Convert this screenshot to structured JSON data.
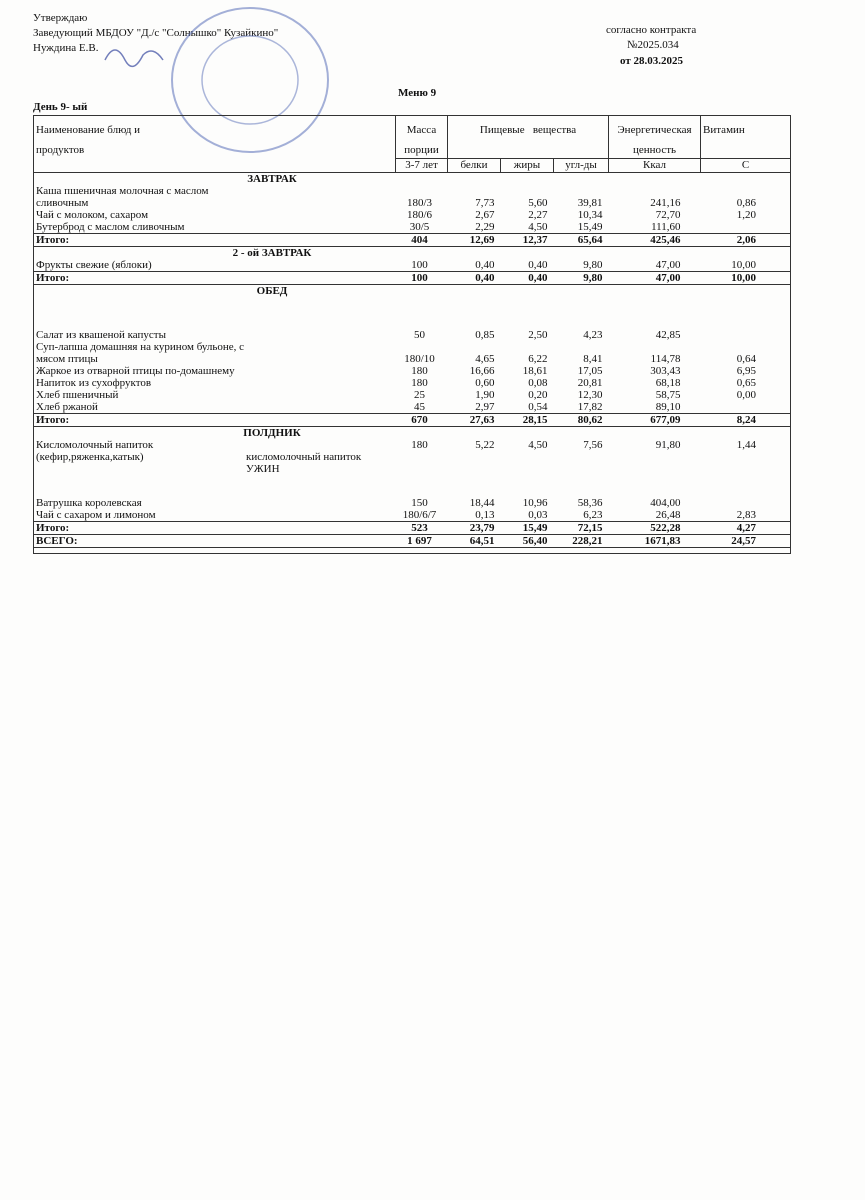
{
  "header": {
    "approve": "Утверждаю",
    "position": "Заведующий МБДОУ \"Д./с \"Солнышко\" Кузайкино\"",
    "name": "Нуждина Е.В.",
    "contract": "согласно контракта",
    "contract_no": "№2025.034",
    "contract_date": "от 28.03.2025"
  },
  "menu_title": "Меню  9",
  "day": "День 9- ый",
  "table": {
    "columns": {
      "name_1": "Наименование блюд и",
      "name_2": "продуктов",
      "mass_1": "Масса",
      "mass_2": "порции",
      "mass_3": "3-7 лет",
      "nutrients": "Пищевые   вещества",
      "proteins": "белки",
      "fats": "жиры",
      "carbs": "угл-ды",
      "energy_1": "Энергетическая",
      "energy_2": "ценность",
      "kcal": "Ккал",
      "vitamin": "Витамин",
      "vitamin_c": "С"
    },
    "sections": [
      {
        "title": "ЗАВТРАК",
        "items": [
          {
            "row": [
              "Каша пшеничная молочная с маслом сливочным",
              "180/3",
              "7,73",
              "5,60",
              "39,81",
              "241,16",
              "0,86"
            ]
          },
          {
            "row": [
              "Чай с молоком, сахаром",
              "180/6",
              "2,67",
              "2,27",
              "10,34",
              "72,70",
              "1,20"
            ]
          },
          {
            "row": [
              "Бутерброд с маслом сливочным",
              "30/5",
              "2,29",
              "4,50",
              "15,49",
              "111,60",
              null
            ]
          }
        ],
        "total": [
          "Итого:",
          "404",
          "12,69",
          "12,37",
          "65,64",
          "425,46",
          "2,06"
        ]
      },
      {
        "title": "2 - ой ЗАВТРАК",
        "items": [
          {
            "row": [
              "Фрукты свежие (яблоки)",
              "100",
              "0,40",
              "0,40",
              "9,80",
              "47,00",
              "10,00"
            ]
          }
        ],
        "total": [
          "Итого:",
          "100",
          "0,40",
          "0,40",
          "9,80",
          "47,00",
          "10,00"
        ]
      },
      {
        "title": "ОБЕД",
        "items": [
          {
            "row": [
              "Салат из квашеной капусты",
              "50",
              "0,85",
              "2,50",
              "4,23",
              "42,85",
              null
            ]
          },
          {
            "row": [
              "Суп-лапша домашняя на курином бульоне, с мясом птицы",
              "180/10",
              "4,65",
              "6,22",
              "8,41",
              "114,78",
              "0,64"
            ]
          },
          {
            "row": [
              "Жаркое из отварной птицы по-домашнему",
              "180",
              "16,66",
              "18,61",
              "17,05",
              "303,43",
              "6,95"
            ]
          },
          {
            "row": [
              "Напиток из сухофруктов",
              "180",
              "0,60",
              "0,08",
              "20,81",
              "68,18",
              "0,65"
            ]
          },
          {
            "row": [
              "Хлеб пшеничный",
              "25",
              "1,90",
              "0,20",
              "12,30",
              "58,75",
              "0,00"
            ]
          },
          {
            "row": [
              "Хлеб ржаной",
              "45",
              "2,97",
              "0,54",
              "17,82",
              "89,10",
              null
            ]
          }
        ],
        "total": [
          "Итого:",
          "670",
          "27,63",
          "28,15",
          "80,62",
          "677,09",
          "8,24"
        ]
      },
      {
        "title": "ПОЛДНИК",
        "items": [
          {
            "row": [
              "Кисломолочный напиток",
              "180",
              "5,22",
              "4,50",
              "7,56",
              "91,80",
              "1,44"
            ]
          },
          {
            "note": [
              "(кефир,ряженка,катык)",
              "кисломолочный напиток"
            ]
          },
          {
            "subtitle": "УЖИН"
          },
          {
            "row": [
              "Ватрушка королевская",
              "150",
              "18,44",
              "10,96",
              "58,36",
              "404,00",
              null
            ]
          },
          {
            "row": [
              "Чай с сахаром и лимоном",
              "180/6/7",
              "0,13",
              "0,03",
              "6,23",
              "26,48",
              "2,83"
            ]
          }
        ],
        "total": [
          "Итого:",
          "523",
          "23,79",
          "15,49",
          "72,15",
          "522,28",
          "4,27"
        ]
      }
    ],
    "grand_total": [
      "ВСЕГО:",
      "1 697",
      "64,51",
      "56,40",
      "228,21",
      "1671,83",
      "24,57"
    ]
  }
}
